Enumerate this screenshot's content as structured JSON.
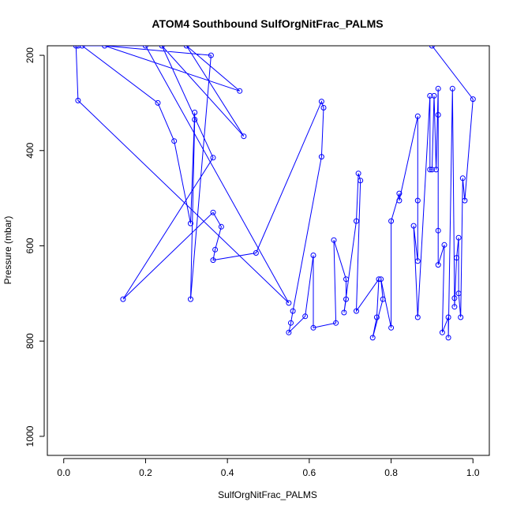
{
  "chart_data": {
    "type": "line",
    "title": "ATOM4 Southbound SulfOrgNitFrac_PALMS",
    "xlabel": "SulfOrgNitFrac_PALMS",
    "ylabel": "Pressure (mbar)",
    "xlim": [
      -0.04,
      1.04
    ],
    "ylim": [
      1040,
      180
    ],
    "y_reversed": true,
    "x_ticks": [
      0,
      0.2,
      0.4,
      0.6,
      0.8,
      1
    ],
    "x_tick_labels": [
      "0.0",
      "0.2",
      "0.4",
      "0.6",
      "0.8",
      "1.0"
    ],
    "y_ticks": [
      200,
      400,
      600,
      800,
      1000
    ],
    "y_tick_labels": [
      "200",
      "400",
      "600",
      "800",
      "1000"
    ],
    "grid": false,
    "legend": "none",
    "series_color": "#0000ff",
    "marker": "open-circle",
    "series": [
      {
        "points": [
          [
            0.03,
            180
          ],
          [
            0.035,
            295
          ],
          [
            0.55,
            720
          ],
          [
            0.2,
            180
          ],
          [
            0.035,
            180
          ]
        ]
      },
      {
        "points": [
          [
            0.045,
            180
          ],
          [
            0.23,
            300
          ],
          [
            0.27,
            380
          ],
          [
            0.31,
            553
          ],
          [
            0.32,
            320
          ],
          [
            0.32,
            335
          ],
          [
            0.31,
            712
          ],
          [
            0.36,
            200
          ],
          [
            0.1,
            180
          ],
          [
            0.43,
            275
          ],
          [
            0.3,
            180
          ],
          [
            0.44,
            370
          ],
          [
            0.24,
            180
          ],
          [
            0.365,
            415
          ],
          [
            0.145,
            712
          ],
          [
            0.365,
            530
          ],
          [
            0.385,
            560
          ],
          [
            0.37,
            608
          ],
          [
            0.365,
            630
          ],
          [
            0.47,
            615
          ],
          [
            0.63,
            297
          ],
          [
            0.635,
            310
          ],
          [
            0.63,
            413
          ],
          [
            0.56,
            737
          ],
          [
            0.555,
            762
          ],
          [
            0.55,
            782
          ],
          [
            0.59,
            748
          ],
          [
            0.61,
            620
          ],
          [
            0.61,
            772
          ],
          [
            0.665,
            762
          ],
          [
            0.66,
            588
          ],
          [
            0.69,
            670
          ],
          [
            0.69,
            712
          ],
          [
            0.685,
            740
          ],
          [
            0.715,
            548
          ],
          [
            0.72,
            448
          ],
          [
            0.725,
            463
          ],
          [
            0.715,
            737
          ],
          [
            0.77,
            670
          ],
          [
            0.765,
            750
          ],
          [
            0.755,
            793
          ],
          [
            0.78,
            712
          ],
          [
            0.775,
            670
          ],
          [
            0.8,
            772
          ],
          [
            0.8,
            548
          ],
          [
            0.82,
            490
          ],
          [
            0.82,
            505
          ],
          [
            0.865,
            328
          ],
          [
            0.865,
            505
          ],
          [
            0.865,
            632
          ],
          [
            0.855,
            558
          ],
          [
            0.865,
            750
          ],
          [
            0.895,
            285
          ],
          [
            0.895,
            440
          ],
          [
            0.9,
            440
          ],
          [
            0.905,
            285
          ],
          [
            0.91,
            440
          ],
          [
            0.915,
            270
          ],
          [
            0.915,
            325
          ],
          [
            0.915,
            568
          ],
          [
            0.915,
            640
          ],
          [
            0.93,
            598
          ],
          [
            0.925,
            782
          ],
          [
            0.94,
            750
          ],
          [
            0.94,
            793
          ],
          [
            0.95,
            270
          ],
          [
            0.955,
            710
          ],
          [
            0.955,
            728
          ],
          [
            0.96,
            625
          ],
          [
            0.965,
            583
          ],
          [
            0.965,
            700
          ],
          [
            0.97,
            750
          ],
          [
            0.975,
            458
          ],
          [
            0.98,
            505
          ],
          [
            1.0,
            292
          ],
          [
            0.9,
            180
          ]
        ]
      }
    ]
  }
}
